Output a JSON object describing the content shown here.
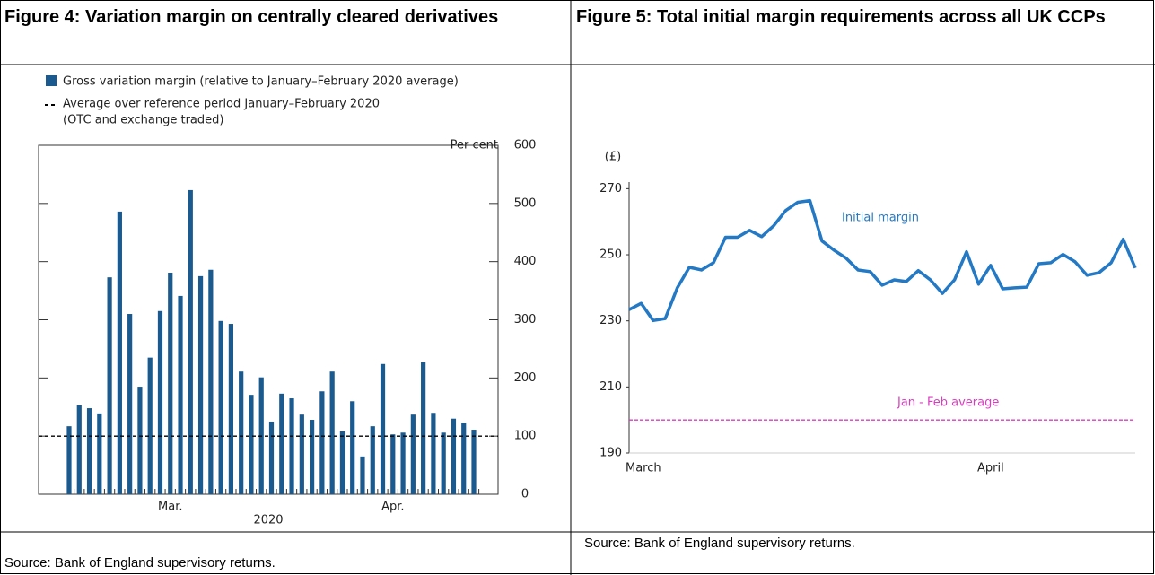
{
  "chart_data": [
    {
      "type": "bar",
      "title": "Figure 4: Variation margin on centrally cleared derivatives",
      "source": "Source:  Bank of England supervisory returns.",
      "y_axis_label": "Per cent",
      "xlabel": "2020",
      "categories": [
        null,
        null,
        null,
        null,
        null,
        null,
        null,
        null,
        null,
        null,
        "Mar.",
        null,
        null,
        null,
        null,
        null,
        null,
        null,
        null,
        null,
        null,
        null,
        null,
        null,
        null,
        null,
        null,
        null,
        null,
        null,
        null,
        null,
        "Apr.",
        null,
        null,
        null,
        null,
        null,
        null,
        null,
        null
      ],
      "series": [
        {
          "name": "Gross variation margin (relative to January–February 2020 average)",
          "color": "#1b5a8e",
          "values": [
            117,
            153,
            148,
            139,
            373,
            486,
            310,
            185,
            235,
            315,
            381,
            341,
            523,
            375,
            386,
            298,
            293,
            211,
            171,
            201,
            125,
            173,
            165,
            137,
            128,
            177,
            211,
            108,
            160,
            65,
            117,
            224,
            103,
            106,
            137,
            227,
            140,
            106,
            130,
            123,
            111
          ]
        }
      ],
      "reference_line": {
        "name": "Average over reference period January–February 2020",
        "note": "(OTC and exchange traded)",
        "value": 100,
        "color": "#000000"
      },
      "ylim": [
        0,
        600
      ],
      "yticks": [
        0,
        100,
        200,
        300,
        400,
        500,
        600
      ]
    },
    {
      "type": "line",
      "title": "Figure 5: Total initial margin requirements across all UK CCPs",
      "source": "Source:  Bank of England supervisory returns.",
      "y_axis_label": "(£)",
      "categories": [
        "March",
        null,
        null,
        null,
        null,
        null,
        null,
        null,
        null,
        null,
        null,
        null,
        null,
        null,
        null,
        null,
        null,
        null,
        null,
        null,
        null,
        null,
        null,
        null,
        null,
        null,
        null,
        null,
        null,
        null,
        "April",
        null,
        null,
        null,
        null,
        null,
        null,
        null,
        null,
        null,
        null,
        null,
        null
      ],
      "series": [
        {
          "name": "Initial margin",
          "color": "#2479c5",
          "values": [
            233.4,
            235.3,
            230.1,
            230.7,
            240.0,
            246.2,
            245.4,
            247.6,
            255.3,
            255.3,
            257.4,
            255.5,
            258.8,
            263.4,
            265.9,
            266.4,
            254.2,
            251.4,
            249.0,
            245.4,
            244.9,
            240.8,
            242.4,
            241.9,
            245.2,
            242.4,
            238.3,
            242.4,
            250.9,
            241.1,
            246.8,
            239.7,
            240.0,
            240.2,
            247.3,
            247.6,
            250.1,
            247.9,
            243.8,
            244.6,
            247.6,
            254.7,
            246.0
          ]
        }
      ],
      "reference_line": {
        "name": "Jan - Feb average",
        "value": 200,
        "color": "#d93cc0"
      },
      "ylim": [
        190,
        272
      ],
      "yticks": [
        190,
        210,
        230,
        250,
        270
      ]
    }
  ]
}
